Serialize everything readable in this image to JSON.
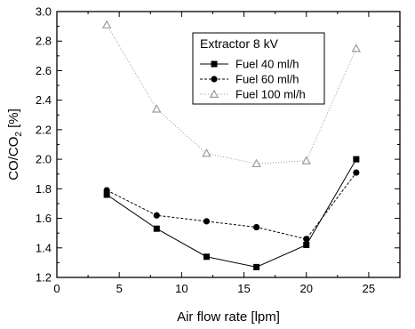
{
  "chart_data": {
    "type": "line",
    "xlabel": "Air flow rate [lpm]",
    "ylabel_main": "CO/CO",
    "ylabel_sub": "2",
    "ylabel_tail": " [%]",
    "xlim": [
      0,
      27.5
    ],
    "ylim": [
      1.2,
      3.0
    ],
    "xticks": [
      0,
      5,
      10,
      15,
      20,
      25
    ],
    "yticks": [
      1.2,
      1.4,
      1.6,
      1.8,
      2.0,
      2.2,
      2.4,
      2.6,
      2.8,
      3.0
    ],
    "ytick_labels": [
      "1.2",
      "1.4",
      "1.6",
      "1.8",
      "2.0",
      "2.2",
      "2.4",
      "2.6",
      "2.8",
      "3.0"
    ],
    "legend_title": "Extractor 8 kV",
    "legend_position": "top-right",
    "x": [
      4,
      8,
      12,
      16,
      20,
      24
    ],
    "series": [
      {
        "name": "Fuel 40 ml/h",
        "marker": "square",
        "color": "#000000",
        "dash": "",
        "values": [
          1.76,
          1.53,
          1.34,
          1.27,
          1.42,
          2.0
        ]
      },
      {
        "name": "Fuel 60 ml/h",
        "marker": "circle",
        "color": "#000000",
        "dash": "3,2",
        "values": [
          1.79,
          1.62,
          1.58,
          1.54,
          1.46,
          1.91
        ]
      },
      {
        "name": "Fuel 100 ml/h",
        "marker": "triangle",
        "color": "#9a9a9a",
        "dash": "1,2",
        "values": [
          2.91,
          2.34,
          2.04,
          1.97,
          1.99,
          2.75
        ]
      }
    ]
  }
}
